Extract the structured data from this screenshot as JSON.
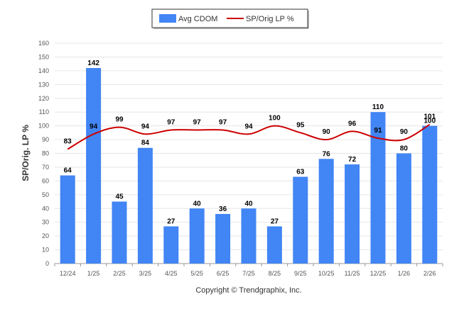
{
  "chart_data": {
    "type": "bar+line",
    "title": "",
    "xlabel": "",
    "ylabel": "SP/Orig. LP %",
    "ylim": [
      0,
      160
    ],
    "yticks": [
      0,
      10,
      20,
      30,
      40,
      50,
      60,
      70,
      80,
      90,
      100,
      110,
      120,
      130,
      140,
      150,
      160
    ],
    "categories": [
      "12/24",
      "1/25",
      "2/25",
      "3/25",
      "4/25",
      "5/25",
      "6/25",
      "7/25",
      "8/25",
      "9/25",
      "10/25",
      "11/25",
      "12/25",
      "1/26",
      "2/26"
    ],
    "series": [
      {
        "name": "Avg CDOM",
        "type": "bar",
        "color": "#4285f4",
        "values": [
          64,
          142,
          45,
          84,
          27,
          40,
          36,
          40,
          27,
          63,
          76,
          72,
          110,
          80,
          100
        ]
      },
      {
        "name": "SP/Orig LP %",
        "type": "line",
        "color": "#cc0000",
        "values": [
          83,
          94,
          99,
          94,
          97,
          97,
          97,
          94,
          100,
          95,
          90,
          96,
          91,
          90,
          101
        ]
      }
    ],
    "grid": true,
    "legend_position": "top-center",
    "footer": "Copyright © Trendgraphix, Inc."
  }
}
